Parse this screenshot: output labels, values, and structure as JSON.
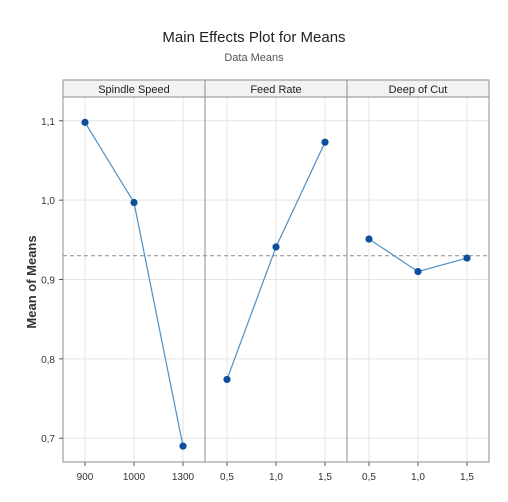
{
  "chart_data": {
    "type": "line",
    "title": "Main Effects Plot for Means",
    "subtitle": "Data Means",
    "ylabel": "Mean of Means",
    "xlabel": "",
    "ylim": [
      0.67,
      1.13
    ],
    "yticks": [
      {
        "value": 0.7,
        "label": "0,7"
      },
      {
        "value": 0.8,
        "label": "0,8"
      },
      {
        "value": 0.9,
        "label": "0,9"
      },
      {
        "value": 1.0,
        "label": "1,0"
      },
      {
        "value": 1.1,
        "label": "1,1"
      }
    ],
    "reference_line": {
      "value": 0.93,
      "style": "dashed"
    },
    "grid": true,
    "panels": [
      {
        "name": "Spindle Speed",
        "categories": [
          "900",
          "1000",
          "1300"
        ],
        "values": [
          1.098,
          0.997,
          0.69
        ]
      },
      {
        "name": "Feed Rate",
        "categories": [
          "0,5",
          "1,0",
          "1,5"
        ],
        "values": [
          0.774,
          0.941,
          1.073
        ]
      },
      {
        "name": "Deep of Cut",
        "categories": [
          "0,5",
          "1,0",
          "1,5"
        ],
        "values": [
          0.951,
          0.91,
          0.927
        ]
      }
    ],
    "colors": {
      "line": "#4a90c8",
      "marker": "#0d4f9c",
      "grid": "#e3e3e3",
      "frame": "#8c8c8c",
      "header_bg": "#f2f2f2",
      "reference": "#8a8a8a"
    }
  }
}
